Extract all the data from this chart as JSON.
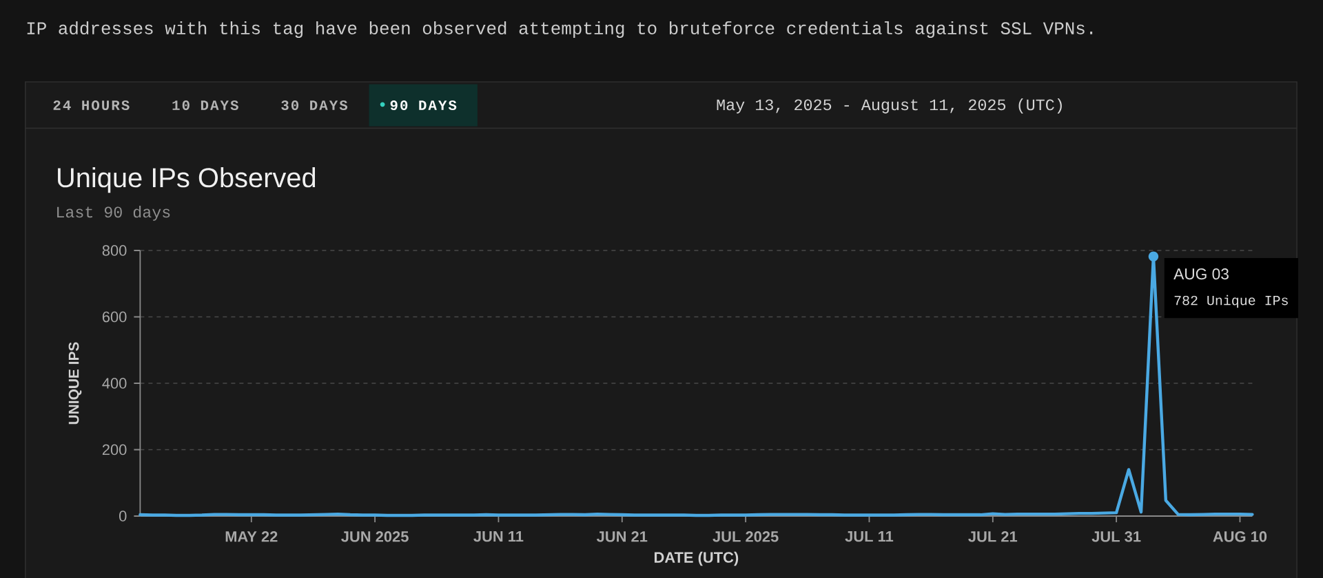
{
  "chart_data": {
    "type": "line",
    "title": "Unique IPs Observed",
    "subtitle": "Last 90 days",
    "xlabel": "DATE (UTC)",
    "ylabel": "UNIQUE IPS",
    "x": [
      "2025-05-13",
      "2025-05-14",
      "2025-05-15",
      "2025-05-16",
      "2025-05-17",
      "2025-05-18",
      "2025-05-19",
      "2025-05-20",
      "2025-05-21",
      "2025-05-22",
      "2025-05-23",
      "2025-05-24",
      "2025-05-25",
      "2025-05-26",
      "2025-05-27",
      "2025-05-28",
      "2025-05-29",
      "2025-05-30",
      "2025-05-31",
      "2025-06-01",
      "2025-06-02",
      "2025-06-03",
      "2025-06-04",
      "2025-06-05",
      "2025-06-06",
      "2025-06-07",
      "2025-06-08",
      "2025-06-09",
      "2025-06-10",
      "2025-06-11",
      "2025-06-12",
      "2025-06-13",
      "2025-06-14",
      "2025-06-15",
      "2025-06-16",
      "2025-06-17",
      "2025-06-18",
      "2025-06-19",
      "2025-06-20",
      "2025-06-21",
      "2025-06-22",
      "2025-06-23",
      "2025-06-24",
      "2025-06-25",
      "2025-06-26",
      "2025-06-27",
      "2025-06-28",
      "2025-06-29",
      "2025-06-30",
      "2025-07-01",
      "2025-07-02",
      "2025-07-03",
      "2025-07-04",
      "2025-07-05",
      "2025-07-06",
      "2025-07-07",
      "2025-07-08",
      "2025-07-09",
      "2025-07-10",
      "2025-07-11",
      "2025-07-12",
      "2025-07-13",
      "2025-07-14",
      "2025-07-15",
      "2025-07-16",
      "2025-07-17",
      "2025-07-18",
      "2025-07-19",
      "2025-07-20",
      "2025-07-21",
      "2025-07-22",
      "2025-07-23",
      "2025-07-24",
      "2025-07-25",
      "2025-07-26",
      "2025-07-27",
      "2025-07-28",
      "2025-07-29",
      "2025-07-30",
      "2025-07-31",
      "2025-08-01",
      "2025-08-02",
      "2025-08-03",
      "2025-08-04",
      "2025-08-05",
      "2025-08-06",
      "2025-08-07",
      "2025-08-08",
      "2025-08-09",
      "2025-08-10",
      "2025-08-11"
    ],
    "values": [
      4,
      3,
      3,
      2,
      2,
      3,
      5,
      5,
      4,
      4,
      4,
      3,
      3,
      3,
      4,
      5,
      6,
      4,
      3,
      3,
      2,
      2,
      2,
      3,
      3,
      3,
      3,
      3,
      4,
      3,
      3,
      3,
      3,
      4,
      5,
      5,
      4,
      6,
      5,
      4,
      3,
      3,
      3,
      3,
      3,
      2,
      2,
      3,
      3,
      3,
      4,
      5,
      5,
      5,
      5,
      4,
      4,
      3,
      3,
      3,
      3,
      3,
      4,
      5,
      5,
      4,
      4,
      4,
      4,
      7,
      5,
      6,
      6,
      6,
      6,
      7,
      8,
      8,
      9,
      10,
      140,
      12,
      782,
      47,
      5,
      4,
      5,
      6,
      6,
      6,
      5
    ],
    "color": "#4aa9e3",
    "xlim": [
      "2025-05-13",
      "2025-08-11"
    ],
    "xticks": [
      {
        "value": "2025-05-22",
        "label": "MAY 22"
      },
      {
        "value": "2025-06-01",
        "label": "JUN 2025"
      },
      {
        "value": "2025-06-11",
        "label": "JUN 11"
      },
      {
        "value": "2025-06-21",
        "label": "JUN 21"
      },
      {
        "value": "2025-07-01",
        "label": "JUL 2025"
      },
      {
        "value": "2025-07-11",
        "label": "JUL 11"
      },
      {
        "value": "2025-07-21",
        "label": "JUL 21"
      },
      {
        "value": "2025-07-31",
        "label": "JUL 31"
      },
      {
        "value": "2025-08-10",
        "label": "AUG 10"
      }
    ],
    "ylim": [
      0,
      800
    ],
    "yticks": [
      0,
      200,
      400,
      600,
      800
    ],
    "grid": "y",
    "annotations": [
      "IP addresses with this tag have been observed attempting to bruteforce credentials against SSL VPNs.",
      "24 HOURS",
      "10 DAYS",
      "30 DAYS",
      "90 DAYS",
      "May 13, 2025 - August 11, 2025 (UTC)",
      {
        "text": "AUG 03",
        "x": "2025-08-03",
        "y": 782
      },
      "782 Unique IPs"
    ]
  }
}
